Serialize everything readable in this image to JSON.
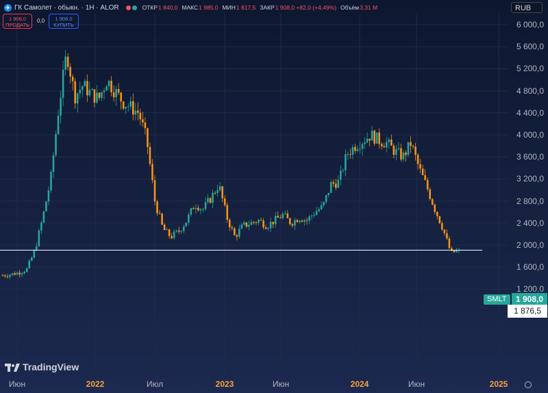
{
  "header": {
    "title": "ГК Самолет · обыкн. · 1Н · ALOR",
    "ohlc": [
      {
        "key": "ОТКР",
        "value": "1 840,0"
      },
      {
        "key": "МАКС",
        "value": "1 985,0"
      },
      {
        "key": "МИН",
        "value": "1 817,5"
      },
      {
        "key": "ЗАКР",
        "value": "1 908,0 +82,0 (+4,49%)"
      },
      {
        "key": "Объём",
        "value": "3,31 M"
      }
    ],
    "sell_price": "1 908,0",
    "sell_label": "ПРОДАТЬ",
    "spread": "0,0",
    "buy_price": "1 908,0",
    "buy_label": "КУПИТЬ",
    "currency": "RUB"
  },
  "labels": {
    "symbol_tag": "SMLT",
    "last_price": "1 908,0",
    "crosshair_price": "1 876,5",
    "brand": "TradingView"
  },
  "colors": {
    "up": "#26a69a",
    "down": "#f7931a",
    "price_line": "#ffffff"
  },
  "chart_data": {
    "type": "candlestick",
    "ylim": [
      800,
      6000
    ],
    "y_ticks": [
      "1 200,0",
      "1 600,0",
      "2 000,0",
      "2 400,0",
      "2 800,0",
      "3 200,0",
      "3 600,0",
      "4 000,0",
      "4 400,0",
      "4 800,0",
      "5 200,0",
      "5 600,0",
      "6 000,0"
    ],
    "x_ticks": [
      {
        "label": "Июн",
        "year": false
      },
      {
        "label": "2022",
        "year": true
      },
      {
        "label": "Июл",
        "year": false
      },
      {
        "label": "2023",
        "year": true
      },
      {
        "label": "Июн",
        "year": false
      },
      {
        "label": "2024",
        "year": true
      },
      {
        "label": "Июн",
        "year": false
      },
      {
        "label": "2025",
        "year": true
      }
    ],
    "last_price": 1908,
    "crosshair_price": 1876.5,
    "close_path": [
      1450,
      1470,
      1500,
      1560,
      1900,
      2500,
      3200,
      4500,
      5500,
      4700,
      4900,
      4750,
      4650,
      5000,
      4800,
      4600,
      4500,
      4400,
      3900,
      2800,
      2300,
      2150,
      2250,
      2450,
      2750,
      2650,
      2850,
      3100,
      2500,
      2150,
      2350,
      2400,
      2450,
      2350,
      2450,
      2550,
      2400,
      2500,
      2450,
      2600,
      2700,
      3100,
      3150,
      3650,
      3800,
      3900,
      4000,
      3900,
      3850,
      3700,
      3600,
      3850,
      3400,
      3050,
      2650,
      2300,
      1850,
      1908
    ]
  }
}
